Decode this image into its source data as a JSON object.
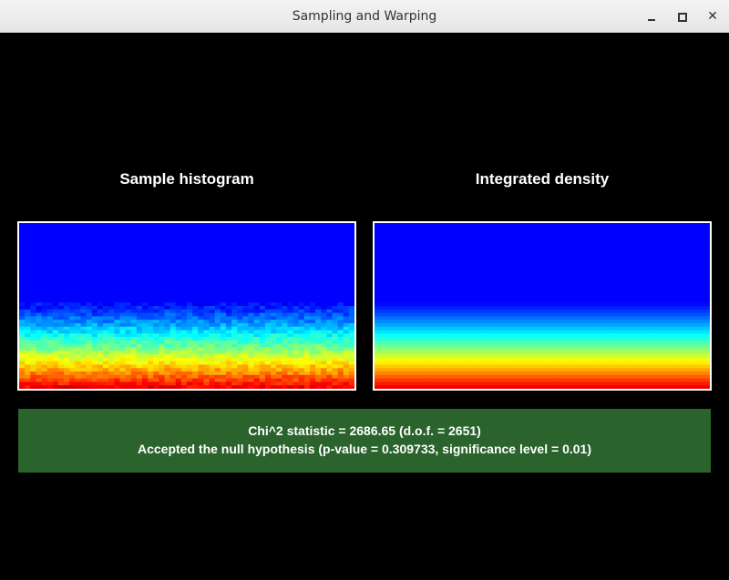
{
  "window": {
    "title": "Sampling and Warping",
    "controls": [
      "minimize",
      "maximize",
      "close"
    ]
  },
  "panels": {
    "left_title": "Sample histogram",
    "right_title": "Integrated density"
  },
  "result": {
    "line1": "Chi^2 statistic = 2686.65 (d.o.f. = 2651)",
    "line2": "Accepted the null hypothesis (p-value = 0.309733, significance level = 0.01)",
    "status_color": "#2a632c"
  },
  "colormap": "jet"
}
